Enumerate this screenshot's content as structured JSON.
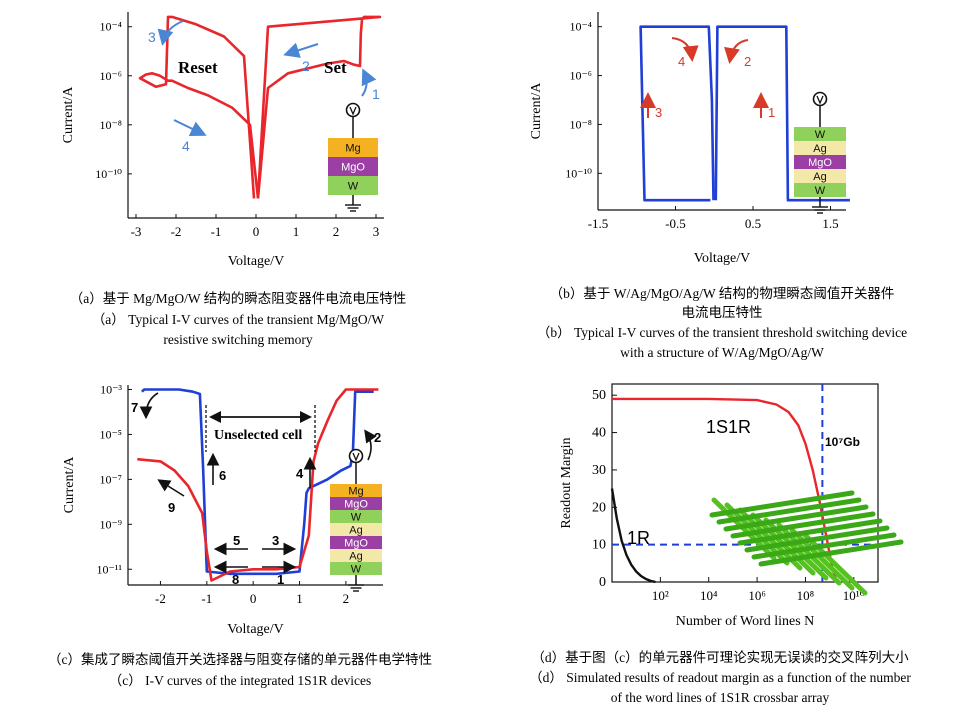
{
  "colors": {
    "red": "#e8262c",
    "blue": "#1f3fd6",
    "arrow_blue": "#4a86d6",
    "arrow_red": "#d83a2a",
    "dashed_blue": "#1f3fd6",
    "mg": "#f4b223",
    "mgo": "#9b3fa4",
    "w": "#8fd15a",
    "ag": "#f3e8a8",
    "grid_green": "#55c21f"
  },
  "chart_data": [
    {
      "id": "a",
      "type": "line",
      "xlabel": "Voltage/V",
      "ylabel": "Current/A",
      "xlim": [
        -3.2,
        3.2
      ],
      "ylim": [
        -11.8,
        -3.4
      ],
      "yscale": "log",
      "xticks": [
        "-3",
        "-2",
        "-1",
        "0",
        "1",
        "2",
        "3"
      ],
      "yticks": [
        "10⁻¹⁰",
        "10⁻⁸",
        "10⁻⁶",
        "10⁻⁴"
      ],
      "series": [
        {
          "x": [
            0.05,
            0.3,
            0.8,
            1.3,
            1.8,
            2.2,
            2.45,
            2.6,
            2.62,
            2.65,
            2.7,
            3.1,
            0.3,
            0.05
          ],
          "y": [
            -11.0,
            -6.5,
            -5.9,
            -5.7,
            -5.5,
            -5.4,
            -5.55,
            -5.6,
            -4.3,
            -3.7,
            -3.6,
            -3.6,
            -4.0,
            -11.0
          ]
        },
        {
          "x": [
            0.05,
            -0.15,
            -0.6,
            -1.2,
            -1.7,
            -2.1,
            -2.2,
            -2.4,
            -2.6,
            -2.75,
            -2.9,
            -2.5,
            -2.25,
            -2.2,
            -2.1,
            -1.5,
            -0.8,
            -0.3,
            -0.05
          ],
          "y": [
            -11.0,
            -8.0,
            -7.3,
            -6.8,
            -6.5,
            -6.2,
            -6.2,
            -6.0,
            -5.9,
            -5.95,
            -6.1,
            -6.45,
            -6.35,
            -3.6,
            -3.6,
            -3.9,
            -4.4,
            -5.2,
            -11.0
          ]
        }
      ],
      "labels": {
        "reset": "Reset",
        "set": "Set"
      },
      "arrows": [
        "1",
        "2",
        "3",
        "4"
      ],
      "stack": [
        "Mg",
        "MgO",
        "W"
      ],
      "caption_zh": "（a）基于 Mg/MgO/W 结构的瞬态阻变器件电流电压特性",
      "caption_en_1": "（a） Typical I-V curves of the transient Mg/MgO/W",
      "caption_en_2": "resistive switching memory"
    },
    {
      "id": "b",
      "type": "line",
      "xlabel": "Voltage/V",
      "ylabel": "Current/A",
      "xlim": [
        -1.5,
        1.7
      ],
      "ylim": [
        -11.5,
        -3.4
      ],
      "yscale": "log",
      "xticks": [
        "-1.5",
        "-0.5",
        "0.5",
        "1.5"
      ],
      "yticks": [
        "10⁻¹⁰",
        "10⁻⁸",
        "10⁻⁶",
        "10⁻⁴"
      ],
      "series": [
        {
          "x": [
            -0.05,
            -0.9,
            -0.95,
            -0.45,
            -0.07,
            -0.03,
            -0.01
          ],
          "y": [
            -11.1,
            -11.1,
            -4.0,
            -4.0,
            -4.0,
            -7.0,
            -11.1
          ]
        },
        {
          "x": [
            0.02,
            0.04,
            0.5,
            0.93,
            0.95,
            1.2,
            1.75
          ],
          "y": [
            -11.1,
            -4.0,
            -4.0,
            -4.0,
            -11.1,
            -11.1,
            -11.1
          ]
        }
      ],
      "arrows": [
        "1",
        "2",
        "3",
        "4"
      ],
      "stack": [
        "W",
        "Ag",
        "MgO",
        "Ag",
        "W"
      ],
      "caption_zh_1": "（b）基于 W/Ag/MgO/Ag/W 结构的物理瞬态阈值开关器件",
      "caption_zh_2": "电流电压特性",
      "caption_en_1": "（b） Typical I-V curves of the transient threshold switching device",
      "caption_en_2": "with a structure of W/Ag/MgO/Ag/W"
    },
    {
      "id": "c",
      "type": "line",
      "xlabel": "Voltage/V",
      "ylabel": "Current/A",
      "xlim": [
        -2.7,
        2.8
      ],
      "ylim": [
        -11.7,
        -2.8
      ],
      "yscale": "log",
      "xticks": [
        "-2",
        "-1",
        "0",
        "1",
        "2"
      ],
      "yticks": [
        "10⁻¹¹",
        "10⁻⁹",
        "10⁻⁷",
        "10⁻⁵",
        "10⁻³"
      ],
      "series": [
        {
          "x": [
            -2.4,
            -2.35,
            -1.6,
            -1.3,
            -1.15,
            -1.08,
            -1.0,
            -0.5,
            0.0,
            0.5,
            1.0,
            1.1,
            1.15,
            1.2,
            1.3,
            1.6,
            1.9,
            2.1,
            2.15,
            2.2,
            2.6
          ],
          "y": [
            -3.1,
            -3.0,
            -3.0,
            -3.1,
            -3.2,
            -6.5,
            -11.1,
            -11.2,
            -11.2,
            -11.2,
            -11.1,
            -9.0,
            -7.6,
            -7.4,
            -7.3,
            -7.0,
            -6.6,
            -6.4,
            -5.8,
            -3.1,
            -3.1
          ]
        },
        {
          "x": [
            -2.5,
            -2.0,
            -1.7,
            -1.4,
            -1.1,
            -1.0,
            -0.9,
            -0.5,
            0.0,
            0.5,
            1.0,
            1.2,
            1.3,
            1.4,
            1.6,
            1.8,
            2.0,
            2.4,
            2.7
          ],
          "y": [
            -6.1,
            -6.2,
            -6.6,
            -7.3,
            -8.5,
            -10.2,
            -11.5,
            -11.1,
            -11.0,
            -11.0,
            -10.9,
            -9.5,
            -6.2,
            -5.4,
            -4.4,
            -3.5,
            -3.0,
            -3.0,
            -3.0
          ]
        }
      ],
      "labels": {
        "unselected": "Unselected cell"
      },
      "arrows": [
        "1",
        "2",
        "3",
        "4",
        "5",
        "6",
        "7",
        "8",
        "9"
      ],
      "stack": [
        "Mg",
        "MgO",
        "W",
        "Ag",
        "MgO",
        "Ag",
        "W"
      ],
      "caption_zh": "（c）集成了瞬态阈值开关选择器与阻变存储的单元器件电学特性",
      "caption_en": "（c） I-V curves of the integrated 1S1R devices"
    },
    {
      "id": "d",
      "type": "line",
      "xlabel": "Number of Word lines N",
      "ylabel": "Readout Margin",
      "xlim": [
        0,
        11
      ],
      "ylim": [
        0,
        53
      ],
      "xscale": "log",
      "xticks": [
        "10²",
        "10⁴",
        "10⁶",
        "10⁸",
        "10¹⁰"
      ],
      "yticks": [
        "0",
        "10",
        "20",
        "30",
        "40",
        "50"
      ],
      "series": [
        {
          "name": "1S1R",
          "x": [
            0,
            4,
            6,
            6.8,
            7.3,
            7.7,
            8.0,
            8.3,
            8.6,
            8.9,
            9.1,
            9.3
          ],
          "y": [
            49,
            49,
            48.7,
            47.5,
            45.5,
            42,
            37,
            30,
            21,
            11,
            4,
            0
          ]
        },
        {
          "name": "1R",
          "x": [
            0,
            0.2,
            0.4,
            0.6,
            0.8,
            1.0,
            1.2,
            1.4,
            1.6,
            1.8
          ],
          "y": [
            25,
            17,
            11,
            7.2,
            4.6,
            2.8,
            1.6,
            0.8,
            0.3,
            0
          ]
        }
      ],
      "threshold_y": 10,
      "marker_x": 8.7,
      "labels": {
        "marker": "10⁷Gb"
      },
      "caption_zh": "（d）基于图（c）的单元器件可理论实现无误读的交叉阵列大小",
      "caption_en_1": "（d） Simulated results of readout margin as a function of the number",
      "caption_en_2": "of the word lines of 1S1R crossbar array"
    }
  ]
}
